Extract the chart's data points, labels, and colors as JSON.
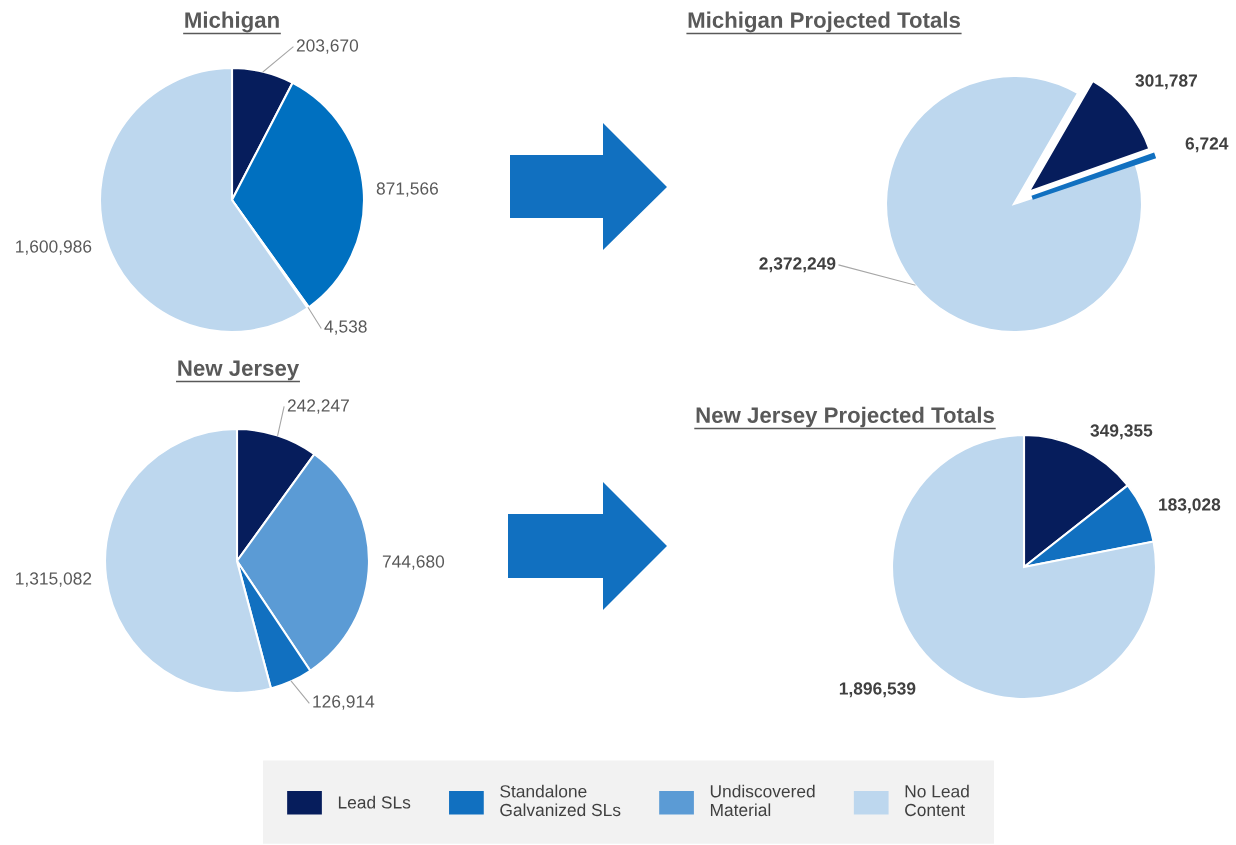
{
  "chart_data": [
    {
      "type": "pie",
      "title": "Michigan",
      "categories": [
        null,
        null,
        null,
        null
      ],
      "values": [
        203670,
        871566,
        4538,
        1600986
      ],
      "colors": [
        "#061d5c",
        "#0070c0",
        "#1170c0",
        "#bdd7ee"
      ],
      "value_labels": [
        "203,670",
        "871,566",
        "4,538",
        "1,600,986"
      ]
    },
    {
      "type": "pie",
      "title": "Michigan Projected Totals",
      "categories": [
        null,
        null,
        null
      ],
      "values": [
        301787,
        6724,
        2372249
      ],
      "colors": [
        "#061d5c",
        "#1170c0",
        "#bdd7ee"
      ],
      "value_labels": [
        "301,787",
        "6,724",
        "2,372,249"
      ]
    },
    {
      "type": "pie",
      "title": "New Jersey",
      "categories": [
        null,
        null,
        null,
        null
      ],
      "values": [
        242247,
        744680,
        126914,
        1315082
      ],
      "colors": [
        "#061d5c",
        "#5b9bd5",
        "#1170c0",
        "#bdd7ee"
      ],
      "value_labels": [
        "242,247",
        "744,680",
        "126,914",
        "1,315,082"
      ]
    },
    {
      "type": "pie",
      "title": "New Jersey Projected Totals",
      "categories": [
        null,
        null,
        null
      ],
      "values": [
        349355,
        183028,
        1896539
      ],
      "colors": [
        "#061d5c",
        "#1170c0",
        "#bdd7ee"
      ],
      "value_labels": [
        "349,355",
        "183,028",
        "1,896,539"
      ]
    },
    {
      "type": "other",
      "series": [
        {
          "name": "Lead SLs",
          "color": "#061d5c"
        },
        {
          "name": "Standalone\nGalvanized SLs",
          "color": "#1170c0"
        },
        {
          "name": "Undiscovered\nMaterial",
          "color": "#5b9bd5"
        },
        {
          "name": "No Lead\nContent",
          "color": "#bdd7ee"
        }
      ],
      "legend": "bottom"
    }
  ]
}
